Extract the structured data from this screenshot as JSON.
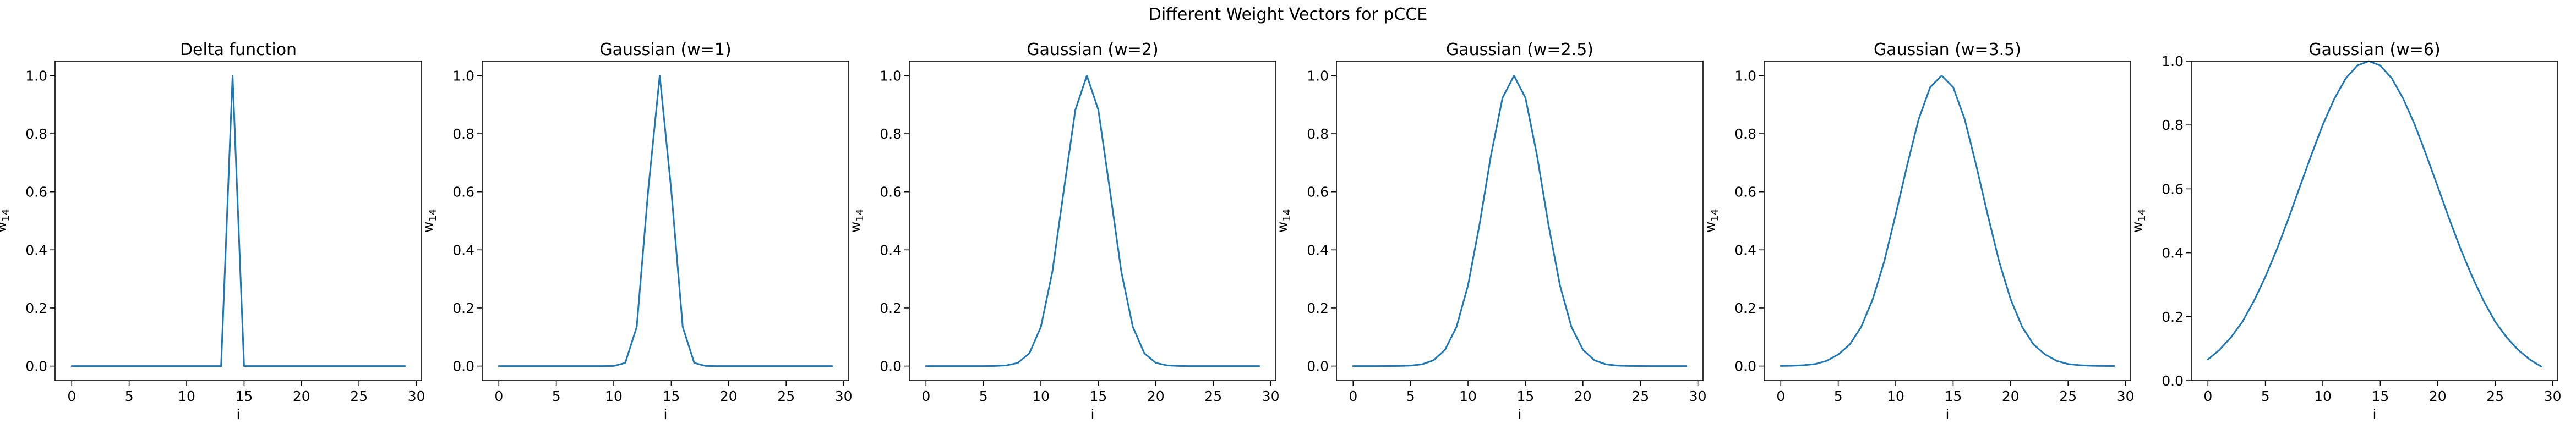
{
  "figure": {
    "suptitle": "Different Weight Vectors for pCCE",
    "line_color": "#1f77b4"
  },
  "chart_data": [
    {
      "type": "line",
      "title": "Delta function",
      "xlabel": "i",
      "ylabel_base": "w",
      "ylabel_sub": "14",
      "xlim": [
        -1.45,
        30.45
      ],
      "ylim": [
        -0.05,
        1.05
      ],
      "xticks": [
        0,
        5,
        10,
        15,
        20,
        25,
        30
      ],
      "yticks": [
        0.0,
        0.2,
        0.4,
        0.6,
        0.8,
        1.0
      ],
      "x": [
        0,
        1,
        2,
        3,
        4,
        5,
        6,
        7,
        8,
        9,
        10,
        11,
        12,
        13,
        14,
        15,
        16,
        17,
        18,
        19,
        20,
        21,
        22,
        23,
        24,
        25,
        26,
        27,
        28,
        29
      ],
      "y": [
        0,
        0,
        0,
        0,
        0,
        0,
        0,
        0,
        0,
        0,
        0,
        0,
        0,
        0,
        1,
        0,
        0,
        0,
        0,
        0,
        0,
        0,
        0,
        0,
        0,
        0,
        0,
        0,
        0,
        0
      ]
    },
    {
      "type": "line",
      "title": "Gaussian (w=1)",
      "xlabel": "i",
      "ylabel_base": "w",
      "ylabel_sub": "14",
      "xlim": [
        -1.45,
        30.45
      ],
      "ylim": [
        -0.05,
        1.05
      ],
      "xticks": [
        0,
        5,
        10,
        15,
        20,
        25,
        30
      ],
      "yticks": [
        0.0,
        0.2,
        0.4,
        0.6,
        0.8,
        1.0
      ],
      "x": [
        0,
        1,
        2,
        3,
        4,
        5,
        6,
        7,
        8,
        9,
        10,
        11,
        12,
        13,
        14,
        15,
        16,
        17,
        18,
        19,
        20,
        21,
        22,
        23,
        24,
        25,
        26,
        27,
        28,
        29
      ],
      "y": [
        0,
        0,
        0,
        0,
        0,
        0,
        0,
        0,
        0,
        0,
        0.0003,
        0.011,
        0.135,
        0.607,
        1.0,
        0.607,
        0.135,
        0.011,
        0.0003,
        0,
        0,
        0,
        0,
        0,
        0,
        0,
        0,
        0,
        0,
        0
      ]
    },
    {
      "type": "line",
      "title": "Gaussian (w=2)",
      "xlabel": "i",
      "ylabel_base": "w",
      "ylabel_sub": "14",
      "xlim": [
        -1.45,
        30.45
      ],
      "ylim": [
        -0.05,
        1.05
      ],
      "xticks": [
        0,
        5,
        10,
        15,
        20,
        25,
        30
      ],
      "yticks": [
        0.0,
        0.2,
        0.4,
        0.6,
        0.8,
        1.0
      ],
      "x": [
        0,
        1,
        2,
        3,
        4,
        5,
        6,
        7,
        8,
        9,
        10,
        11,
        12,
        13,
        14,
        15,
        16,
        17,
        18,
        19,
        20,
        21,
        22,
        23,
        24,
        25,
        26,
        27,
        28,
        29
      ],
      "y": [
        0,
        0,
        0,
        0,
        0,
        0,
        0.0003,
        0.0022,
        0.011,
        0.044,
        0.135,
        0.325,
        0.607,
        0.882,
        1.0,
        0.882,
        0.607,
        0.325,
        0.135,
        0.044,
        0.011,
        0.0022,
        0.0003,
        0,
        0,
        0,
        0,
        0,
        0,
        0
      ]
    },
    {
      "type": "line",
      "title": "Gaussian (w=2.5)",
      "xlabel": "i",
      "ylabel_base": "w",
      "ylabel_sub": "14",
      "xlim": [
        -1.45,
        30.45
      ],
      "ylim": [
        -0.05,
        1.05
      ],
      "xticks": [
        0,
        5,
        10,
        15,
        20,
        25,
        30
      ],
      "yticks": [
        0.0,
        0.2,
        0.4,
        0.6,
        0.8,
        1.0
      ],
      "x": [
        0,
        1,
        2,
        3,
        4,
        5,
        6,
        7,
        8,
        9,
        10,
        11,
        12,
        13,
        14,
        15,
        16,
        17,
        18,
        19,
        20,
        21,
        22,
        23,
        24,
        25,
        26,
        27,
        28,
        29
      ],
      "y": [
        0,
        0,
        0,
        0.0001,
        0.0003,
        0.0015,
        0.006,
        0.02,
        0.056,
        0.135,
        0.278,
        0.487,
        0.726,
        0.923,
        1.0,
        0.923,
        0.726,
        0.487,
        0.278,
        0.135,
        0.056,
        0.02,
        0.006,
        0.0015,
        0.0003,
        0.0001,
        0,
        0,
        0,
        0
      ]
    },
    {
      "type": "line",
      "title": "Gaussian (w=3.5)",
      "xlabel": "i",
      "ylabel_base": "w",
      "ylabel_sub": "14",
      "xlim": [
        -1.45,
        30.45
      ],
      "ylim": [
        -0.05,
        1.05
      ],
      "xticks": [
        0,
        5,
        10,
        15,
        20,
        25,
        30
      ],
      "yticks": [
        0.0,
        0.2,
        0.4,
        0.6,
        0.8,
        1.0
      ],
      "x": [
        0,
        1,
        2,
        3,
        4,
        5,
        6,
        7,
        8,
        9,
        10,
        11,
        12,
        13,
        14,
        15,
        16,
        17,
        18,
        19,
        20,
        21,
        22,
        23,
        24,
        25,
        26,
        27,
        28,
        29
      ],
      "y": [
        0.0003,
        0.001,
        0.003,
        0.007,
        0.018,
        0.04,
        0.074,
        0.135,
        0.23,
        0.36,
        0.522,
        0.692,
        0.85,
        0.96,
        1.0,
        0.96,
        0.85,
        0.692,
        0.522,
        0.36,
        0.23,
        0.135,
        0.074,
        0.04,
        0.018,
        0.007,
        0.003,
        0.001,
        0.0003,
        0.0001
      ]
    },
    {
      "type": "line",
      "title": "Gaussian (w=6)",
      "xlabel": "i",
      "ylabel_base": "w",
      "ylabel_sub": "14",
      "xlim": [
        -1.45,
        30.45
      ],
      "ylim": [
        0.0,
        1.0
      ],
      "xticks": [
        0,
        5,
        10,
        15,
        20,
        25,
        30
      ],
      "yticks": [
        0.0,
        0.2,
        0.4,
        0.6,
        0.8,
        1.0
      ],
      "x": [
        0,
        1,
        2,
        3,
        4,
        5,
        6,
        7,
        8,
        9,
        10,
        11,
        12,
        13,
        14,
        15,
        16,
        17,
        18,
        19,
        20,
        21,
        22,
        23,
        24,
        25,
        26,
        27,
        28,
        29
      ],
      "y": [
        0.066,
        0.096,
        0.135,
        0.184,
        0.249,
        0.325,
        0.411,
        0.506,
        0.607,
        0.706,
        0.801,
        0.882,
        0.946,
        0.986,
        1.0,
        0.986,
        0.946,
        0.882,
        0.801,
        0.706,
        0.607,
        0.506,
        0.411,
        0.325,
        0.249,
        0.184,
        0.135,
        0.096,
        0.066,
        0.044
      ]
    }
  ]
}
